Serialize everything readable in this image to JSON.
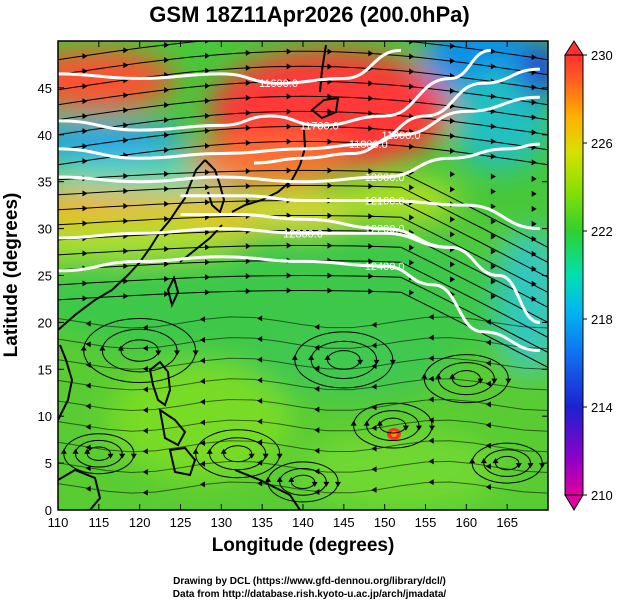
{
  "title": "GSM 18Z11Apr2026 (200.0hPa)",
  "xlabel": "Longitude (degrees)",
  "ylabel": "Latitude  (degrees)",
  "credit_line1": "Drawing by DCL (https://www.gfd-dennou.org/library/dcl/)",
  "credit_line2": "Data from http://database.rish.kyoto-u.ac.jp/arch/jmadata/",
  "chart_data": {
    "type": "heatmap",
    "variable": "200hPa temperature-like field with geopotential height contours and streamlines",
    "xlim": [
      110,
      170
    ],
    "ylim": [
      0,
      50
    ],
    "x_ticks": [
      "110",
      "115",
      "120",
      "125",
      "130",
      "135",
      "140",
      "145",
      "150",
      "155",
      "160",
      "165"
    ],
    "y_ticks": [
      "0",
      "5",
      "10",
      "15",
      "20",
      "25",
      "30",
      "35",
      "40",
      "45"
    ],
    "colorbar": {
      "min": 210,
      "max": 230,
      "tick_labels": [
        "230",
        "226",
        "222",
        "218",
        "214",
        "210"
      ],
      "colors": [
        "#e0007f",
        "#a000c0",
        "#2020d0",
        "#1060f0",
        "#00b0f0",
        "#00e0b0",
        "#30d030",
        "#80e000",
        "#d0e000",
        "#ffb000",
        "#ff6020",
        "#ff3030"
      ]
    },
    "contours": [
      {
        "label": "11600.0",
        "lat_at_lon": [
          [
            110,
            46.5
          ],
          [
            120,
            46.0
          ],
          [
            130,
            46.5
          ],
          [
            137,
            45.5
          ],
          [
            145,
            46
          ],
          [
            152,
            49
          ]
        ]
      },
      {
        "label": "11700.0",
        "lat_at_lon": [
          [
            110,
            41.5
          ],
          [
            120,
            40.5
          ],
          [
            130,
            41
          ],
          [
            136,
            42
          ],
          [
            142,
            41
          ],
          [
            150,
            42
          ],
          [
            158,
            46
          ],
          [
            163,
            49
          ]
        ]
      },
      {
        "label": "11800.0",
        "lat_at_lon": [
          [
            110,
            38.5
          ],
          [
            120,
            37.5
          ],
          [
            130,
            38
          ],
          [
            140,
            38.5
          ],
          [
            148,
            39
          ],
          [
            155,
            42
          ],
          [
            162,
            45.5
          ],
          [
            169,
            47
          ]
        ]
      },
      {
        "label": "11900.0",
        "lat_at_lon": [
          [
            134,
            37
          ],
          [
            140,
            37.5
          ],
          [
            146,
            38
          ],
          [
            152,
            40
          ],
          [
            160,
            42.5
          ],
          [
            169,
            44
          ]
        ]
      },
      {
        "label": "12000.0",
        "lat_at_lon": [
          [
            110,
            35.5
          ],
          [
            120,
            35
          ],
          [
            130,
            35.5
          ],
          [
            140,
            35
          ],
          [
            150,
            35.5
          ],
          [
            158,
            37.5
          ],
          [
            165,
            38.5
          ],
          [
            169,
            39
          ]
        ]
      },
      {
        "label": "12100.0",
        "lat_at_lon": [
          [
            125,
            33.5
          ],
          [
            133,
            33.5
          ],
          [
            140,
            33
          ],
          [
            150,
            33
          ],
          [
            160,
            32.5
          ],
          [
            169,
            30
          ]
        ]
      },
      {
        "label": "12200.0",
        "lat_at_lon": [
          [
            125,
            31.5
          ],
          [
            132,
            31.5
          ],
          [
            140,
            31
          ],
          [
            150,
            30
          ],
          [
            158,
            28
          ],
          [
            164,
            25
          ],
          [
            169,
            20
          ]
        ]
      },
      {
        "label": "12300.0",
        "lat_at_lon": [
          [
            110,
            29
          ],
          [
            120,
            29.5
          ],
          [
            130,
            30
          ],
          [
            140,
            29.5
          ],
          [
            150,
            29.5
          ],
          [
            158,
            28
          ]
        ]
      },
      {
        "label": "12400.0",
        "lat_at_lon": [
          [
            110,
            25.5
          ],
          [
            120,
            26.5
          ],
          [
            130,
            27
          ],
          [
            140,
            26.5
          ],
          [
            150,
            26
          ],
          [
            156,
            24
          ],
          [
            162,
            19
          ],
          [
            169,
            17
          ]
        ]
      }
    ],
    "warm_core_label": "cyclone near 151E 9N"
  }
}
